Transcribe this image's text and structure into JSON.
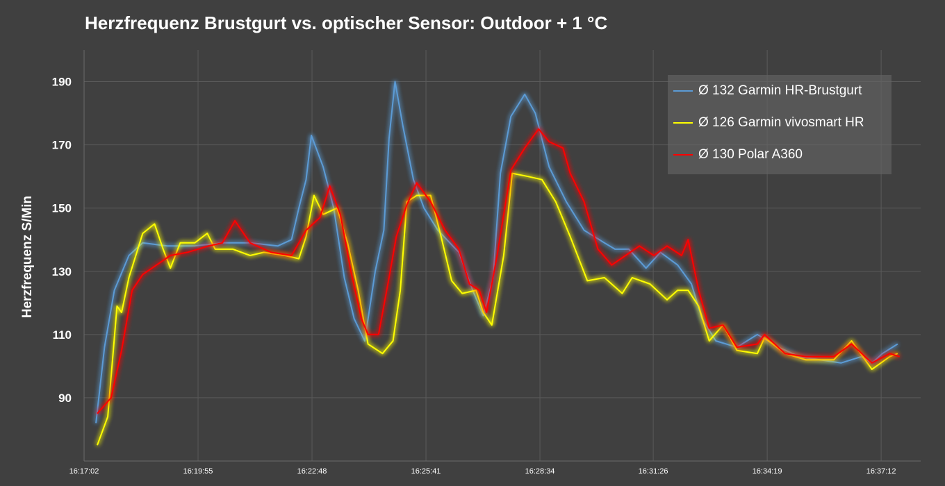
{
  "chart_data": {
    "type": "line",
    "title": "Herzfrequenz Brustgurt vs. optischer Sensor: Outdoor + 1 °C",
    "xlabel": "",
    "ylabel": "Herzfrequenz S/Min",
    "x_unit": "seconds since 16:17:02",
    "xlim": [
      0,
      1270
    ],
    "ylim": [
      70,
      200
    ],
    "yticks": [
      90,
      110,
      130,
      150,
      170,
      190
    ],
    "xticks": [
      {
        "value": 0,
        "label": "16:17:02"
      },
      {
        "value": 173,
        "label": "16:19:55"
      },
      {
        "value": 346,
        "label": "16:22:48"
      },
      {
        "value": 519,
        "label": "16:25:41"
      },
      {
        "value": 692,
        "label": "16:28:34"
      },
      {
        "value": 864,
        "label": "16:31:26"
      },
      {
        "value": 1037,
        "label": "16:34:19"
      },
      {
        "value": 1210,
        "label": "16:37:12"
      }
    ],
    "grid": true,
    "legend_position": "top-right",
    "series": [
      {
        "name": "Ø 132 Garmin HR-Brustgurt",
        "color": "#5b9bd5",
        "points": [
          [
            18,
            82
          ],
          [
            31,
            106
          ],
          [
            46,
            124
          ],
          [
            68,
            135
          ],
          [
            89,
            139
          ],
          [
            126,
            138
          ],
          [
            168,
            138
          ],
          [
            210,
            139
          ],
          [
            252,
            139
          ],
          [
            294,
            138
          ],
          [
            315,
            140
          ],
          [
            326,
            150
          ],
          [
            337,
            159
          ],
          [
            345,
            173
          ],
          [
            363,
            163
          ],
          [
            379,
            150
          ],
          [
            395,
            128
          ],
          [
            410,
            115
          ],
          [
            426,
            108
          ],
          [
            442,
            130
          ],
          [
            455,
            143
          ],
          [
            463,
            172
          ],
          [
            472,
            190
          ],
          [
            484,
            176
          ],
          [
            500,
            159
          ],
          [
            516,
            150
          ],
          [
            537,
            143
          ],
          [
            569,
            136
          ],
          [
            590,
            124
          ],
          [
            606,
            116
          ],
          [
            621,
            128
          ],
          [
            632,
            161
          ],
          [
            648,
            179
          ],
          [
            669,
            186
          ],
          [
            685,
            180
          ],
          [
            706,
            163
          ],
          [
            732,
            152
          ],
          [
            759,
            143
          ],
          [
            790,
            139
          ],
          [
            806,
            137
          ],
          [
            827,
            137
          ],
          [
            853,
            131
          ],
          [
            875,
            136
          ],
          [
            901,
            132
          ],
          [
            922,
            126
          ],
          [
            938,
            115
          ],
          [
            959,
            108
          ],
          [
            991,
            106
          ],
          [
            1022,
            110
          ],
          [
            1054,
            106
          ],
          [
            1086,
            103
          ],
          [
            1117,
            102
          ],
          [
            1149,
            101
          ],
          [
            1180,
            103
          ],
          [
            1196,
            101
          ],
          [
            1212,
            104
          ],
          [
            1235,
            107
          ]
        ]
      },
      {
        "name": "Ø 126 Garmin vivosmart HR",
        "color": "#ffff00",
        "points": [
          [
            20,
            75
          ],
          [
            36,
            84
          ],
          [
            50,
            119
          ],
          [
            57,
            117
          ],
          [
            68,
            128
          ],
          [
            89,
            142
          ],
          [
            107,
            145
          ],
          [
            120,
            137
          ],
          [
            131,
            131
          ],
          [
            146,
            139
          ],
          [
            168,
            139
          ],
          [
            187,
            142
          ],
          [
            199,
            137
          ],
          [
            226,
            137
          ],
          [
            252,
            135
          ],
          [
            273,
            136
          ],
          [
            305,
            135
          ],
          [
            326,
            134
          ],
          [
            337,
            141
          ],
          [
            349,
            154
          ],
          [
            363,
            148
          ],
          [
            384,
            150
          ],
          [
            400,
            139
          ],
          [
            416,
            124
          ],
          [
            431,
            107
          ],
          [
            453,
            104
          ],
          [
            469,
            108
          ],
          [
            480,
            124
          ],
          [
            490,
            152
          ],
          [
            505,
            154
          ],
          [
            526,
            154
          ],
          [
            542,
            141
          ],
          [
            558,
            127
          ],
          [
            574,
            123
          ],
          [
            595,
            124
          ],
          [
            606,
            117
          ],
          [
            619,
            113
          ],
          [
            637,
            135
          ],
          [
            650,
            161
          ],
          [
            674,
            160
          ],
          [
            695,
            159
          ],
          [
            716,
            152
          ],
          [
            738,
            141
          ],
          [
            764,
            127
          ],
          [
            790,
            128
          ],
          [
            817,
            123
          ],
          [
            832,
            128
          ],
          [
            859,
            126
          ],
          [
            885,
            121
          ],
          [
            901,
            124
          ],
          [
            917,
            124
          ],
          [
            933,
            119
          ],
          [
            949,
            108
          ],
          [
            970,
            113
          ],
          [
            991,
            105
          ],
          [
            1022,
            104
          ],
          [
            1033,
            109
          ],
          [
            1064,
            104
          ],
          [
            1096,
            102
          ],
          [
            1138,
            102
          ],
          [
            1165,
            108
          ],
          [
            1196,
            99
          ],
          [
            1223,
            103
          ],
          [
            1235,
            104
          ]
        ]
      },
      {
        "name": "Ø 130 Polar A360",
        "color": "#ff0000",
        "points": [
          [
            20,
            85
          ],
          [
            41,
            90
          ],
          [
            57,
            105
          ],
          [
            73,
            124
          ],
          [
            89,
            129
          ],
          [
            110,
            132
          ],
          [
            131,
            135
          ],
          [
            157,
            136
          ],
          [
            189,
            138
          ],
          [
            210,
            139
          ],
          [
            229,
            146
          ],
          [
            252,
            139
          ],
          [
            284,
            136
          ],
          [
            315,
            135
          ],
          [
            337,
            143
          ],
          [
            358,
            147
          ],
          [
            373,
            157
          ],
          [
            389,
            148
          ],
          [
            405,
            130
          ],
          [
            421,
            115
          ],
          [
            431,
            110
          ],
          [
            447,
            110
          ],
          [
            463,
            128
          ],
          [
            474,
            141
          ],
          [
            490,
            151
          ],
          [
            505,
            158
          ],
          [
            526,
            152
          ],
          [
            548,
            143
          ],
          [
            569,
            137
          ],
          [
            585,
            126
          ],
          [
            600,
            124
          ],
          [
            611,
            117
          ],
          [
            627,
            135
          ],
          [
            648,
            162
          ],
          [
            669,
            169
          ],
          [
            690,
            175
          ],
          [
            706,
            171
          ],
          [
            727,
            169
          ],
          [
            738,
            161
          ],
          [
            759,
            152
          ],
          [
            780,
            137
          ],
          [
            801,
            132
          ],
          [
            822,
            135
          ],
          [
            843,
            138
          ],
          [
            865,
            135
          ],
          [
            885,
            138
          ],
          [
            907,
            135
          ],
          [
            917,
            140
          ],
          [
            933,
            124
          ],
          [
            949,
            112
          ],
          [
            970,
            113
          ],
          [
            991,
            106
          ],
          [
            1022,
            107
          ],
          [
            1033,
            110
          ],
          [
            1064,
            104
          ],
          [
            1096,
            103
          ],
          [
            1138,
            103
          ],
          [
            1165,
            107
          ],
          [
            1196,
            101
          ],
          [
            1223,
            104
          ],
          [
            1238,
            103
          ]
        ]
      }
    ]
  }
}
